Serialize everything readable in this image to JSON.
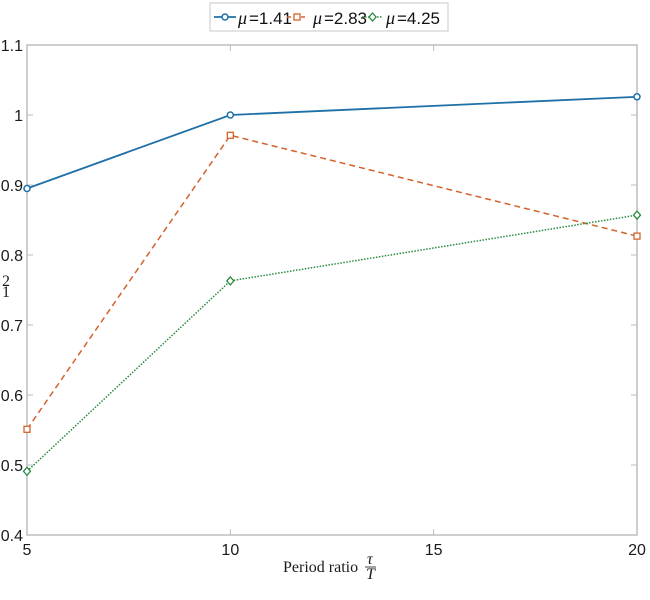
{
  "chart_data": {
    "type": "line",
    "title": "",
    "xlabel": "Period ratio τ/T",
    "ylabel": "₁²",
    "x": [
      5,
      10,
      20
    ],
    "xlim": [
      5,
      20
    ],
    "ylim": [
      0.4,
      1.1
    ],
    "xticks": [
      5,
      10,
      15,
      20
    ],
    "yticks": [
      0.4,
      0.5,
      0.6,
      0.7,
      0.8,
      0.9,
      1,
      1.1
    ],
    "grid": false,
    "legend_position": "top-outside",
    "series": [
      {
        "name": "μ=1.41",
        "values": [
          0.895,
          1.0,
          1.026
        ],
        "color": "#1f6fa8",
        "style": "solid",
        "marker": "circle"
      },
      {
        "name": "μ=2.83",
        "values": [
          0.551,
          0.971,
          0.827
        ],
        "color": "#d4622a",
        "style": "dashed",
        "marker": "square"
      },
      {
        "name": "μ=4.25",
        "values": [
          0.491,
          0.763,
          0.857
        ],
        "color": "#2a8a3e",
        "style": "dotted",
        "marker": "diamond"
      }
    ]
  },
  "legend": {
    "items": [
      {
        "mu": "μ",
        "value": "=1.41"
      },
      {
        "mu": "μ",
        "value": "=2.83"
      },
      {
        "mu": "μ",
        "value": "=4.25"
      }
    ]
  },
  "axes": {
    "xlabel_text": "Period ratio",
    "xlabel_frac_num": "τ",
    "xlabel_frac_den": "T",
    "ylabel_num": "2",
    "ylabel_den": "1",
    "xtick_labels": [
      "5",
      "10",
      "15",
      "20"
    ],
    "ytick_labels": [
      "0.4",
      "0.5",
      "0.6",
      "0.7",
      "0.8",
      "0.9",
      "1",
      "1.1"
    ]
  }
}
